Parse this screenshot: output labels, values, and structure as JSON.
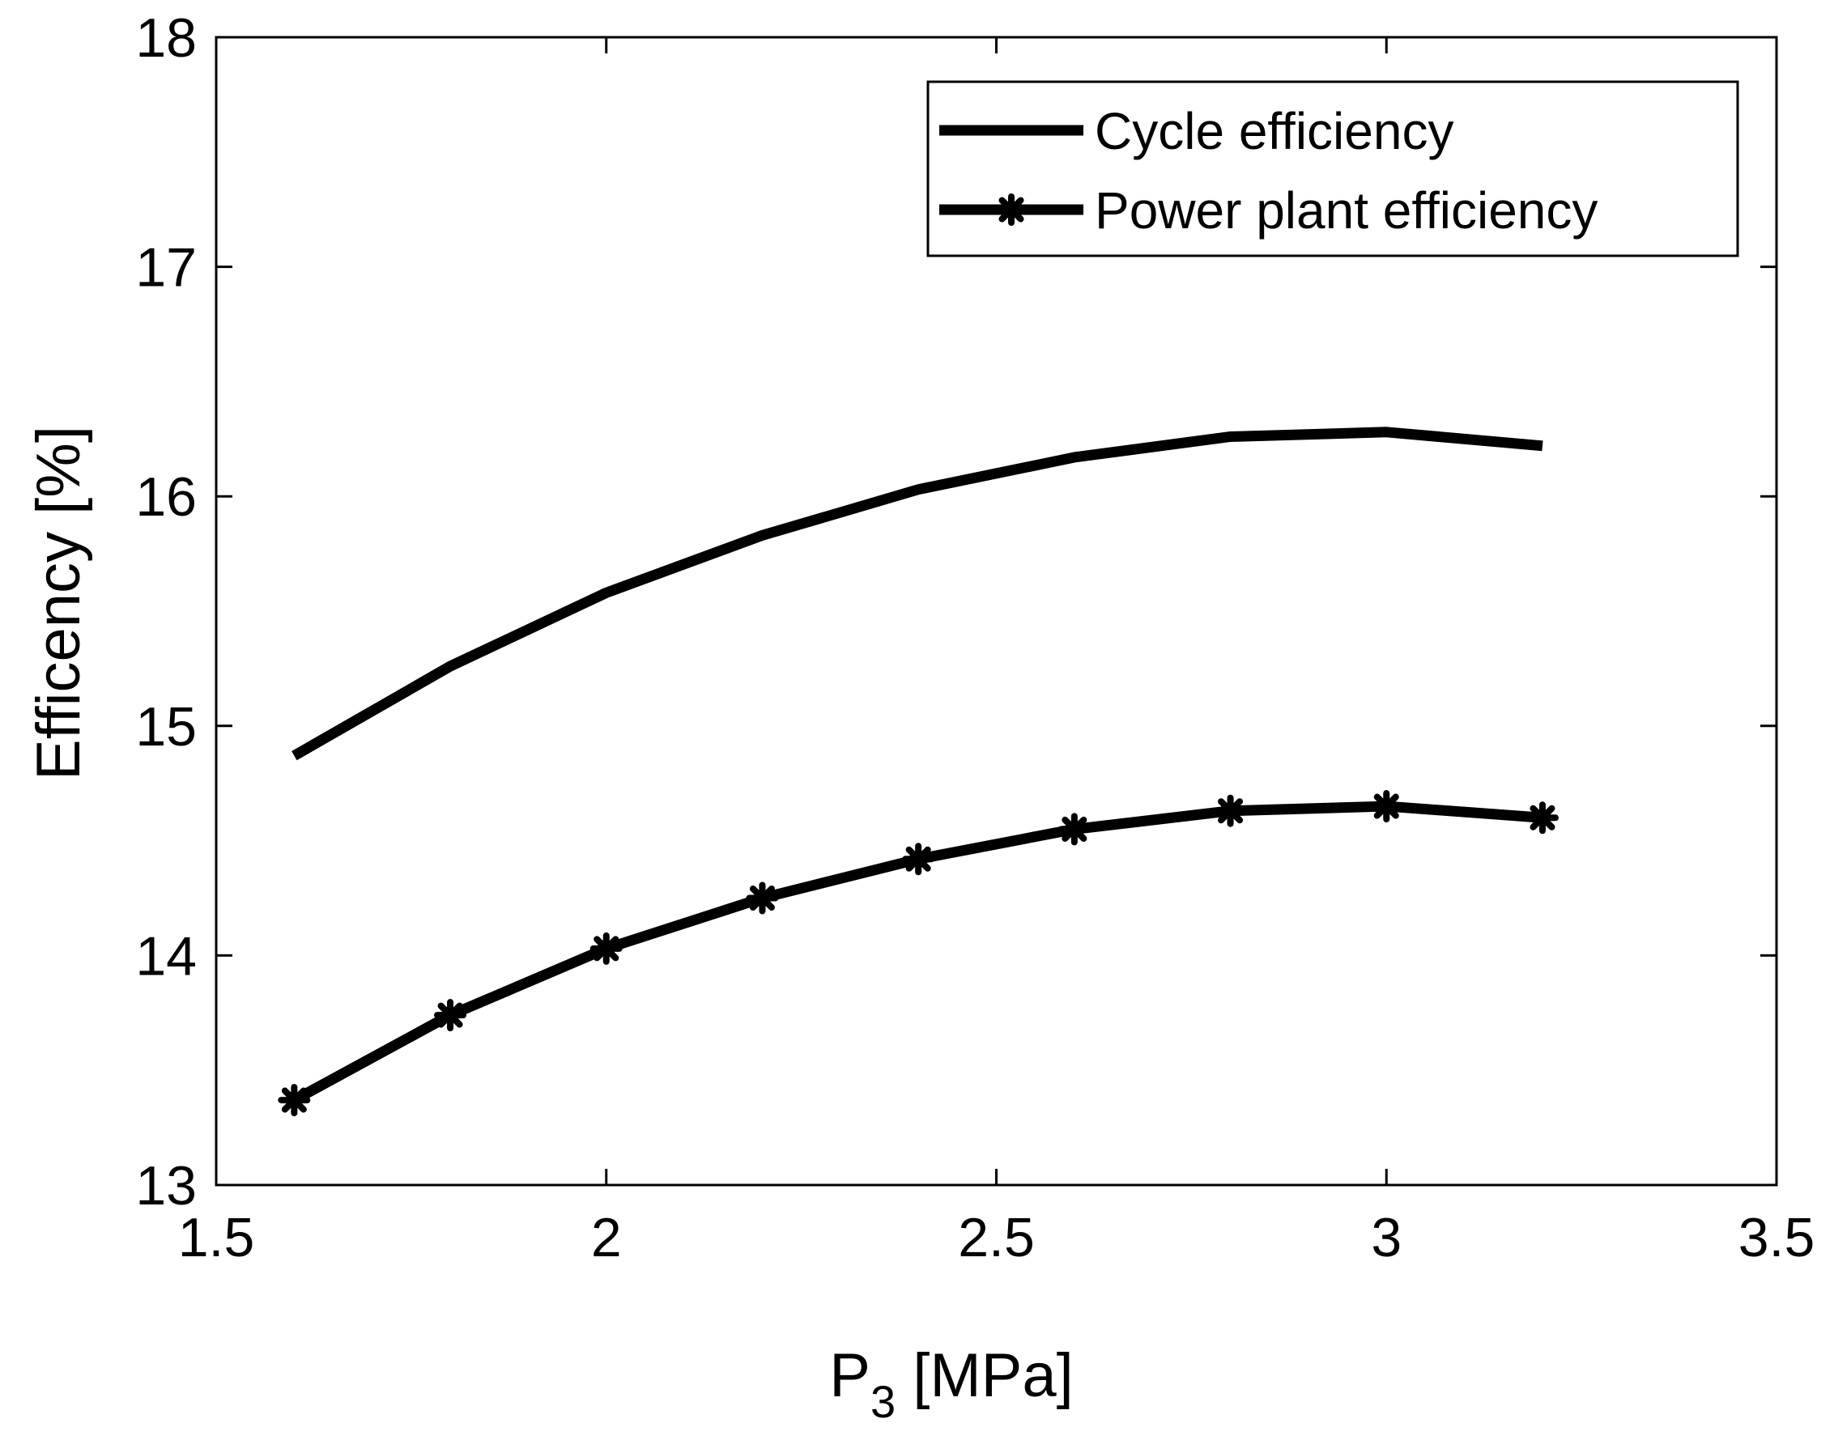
{
  "chart_data": {
    "type": "line",
    "xlabel_main": "P",
    "xlabel_sub": "3",
    "xlabel_unit": " [MPa]",
    "ylabel": "Efficency [%]",
    "xlim": [
      1.5,
      3.5
    ],
    "ylim": [
      13,
      18
    ],
    "xticks": [
      1.5,
      2,
      2.5,
      3,
      3.5
    ],
    "xtick_labels": [
      "1.5",
      "2",
      "2.5",
      "3",
      "3.5"
    ],
    "yticks": [
      13,
      14,
      15,
      16,
      17,
      18
    ],
    "ytick_labels": [
      "13",
      "14",
      "15",
      "16",
      "17",
      "18"
    ],
    "grid": false,
    "legend_position": "top-right",
    "line_color": "#000000",
    "x": [
      1.6,
      1.8,
      2.0,
      2.2,
      2.4,
      2.6,
      2.8,
      3.0,
      3.2
    ],
    "series": [
      {
        "name": "Cycle efficiency",
        "marker": "none",
        "values": [
          14.87,
          15.26,
          15.58,
          15.83,
          16.03,
          16.17,
          16.26,
          16.28,
          16.22
        ]
      },
      {
        "name": "Power plant efficiency",
        "marker": "asterisk",
        "values": [
          13.37,
          13.74,
          14.03,
          14.25,
          14.42,
          14.55,
          14.63,
          14.65,
          14.6
        ]
      }
    ]
  }
}
